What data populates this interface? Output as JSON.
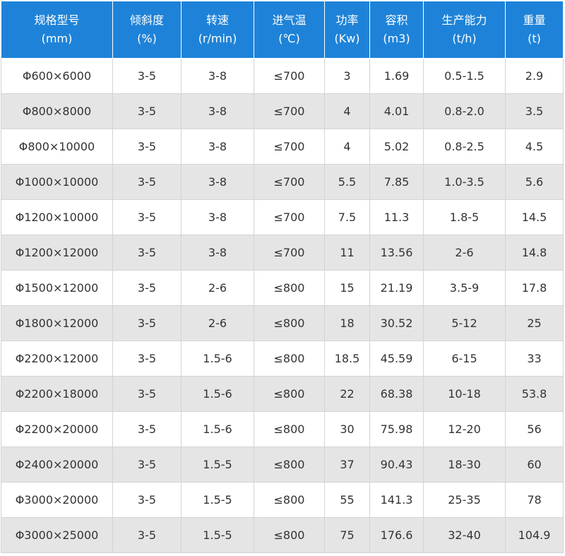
{
  "table": {
    "headers": [
      {
        "name": "规格型号",
        "unit": "(mm)"
      },
      {
        "name": "倾斜度",
        "unit": "(%)"
      },
      {
        "name": "转速",
        "unit": "(r/min)"
      },
      {
        "name": "进气温",
        "unit": "(℃)"
      },
      {
        "name": "功率",
        "unit": "(Kw)"
      },
      {
        "name": "容积",
        "unit": "(m3)"
      },
      {
        "name": "生产能力",
        "unit": "(t/h)"
      },
      {
        "name": "重量",
        "unit": "(t)"
      }
    ],
    "rows": [
      [
        "Φ600×6000",
        "3-5",
        "3-8",
        "≤700",
        "3",
        "1.69",
        "0.5-1.5",
        "2.9"
      ],
      [
        "Φ800×8000",
        "3-5",
        "3-8",
        "≤700",
        "4",
        "4.01",
        "0.8-2.0",
        "3.5"
      ],
      [
        "Φ800×10000",
        "3-5",
        "3-8",
        "≤700",
        "4",
        "5.02",
        "0.8-2.5",
        "4.5"
      ],
      [
        "Φ1000×10000",
        "3-5",
        "3-8",
        "≤700",
        "5.5",
        "7.85",
        "1.0-3.5",
        "5.6"
      ],
      [
        "Φ1200×10000",
        "3-5",
        "3-8",
        "≤700",
        "7.5",
        "11.3",
        "1.8-5",
        "14.5"
      ],
      [
        "Φ1200×12000",
        "3-5",
        "3-8",
        "≤700",
        "11",
        "13.56",
        "2-6",
        "14.8"
      ],
      [
        "Φ1500×12000",
        "3-5",
        "2-6",
        "≤800",
        "15",
        "21.19",
        "3.5-9",
        "17.8"
      ],
      [
        "Φ1800×12000",
        "3-5",
        "2-6",
        "≤800",
        "18",
        "30.52",
        "5-12",
        "25"
      ],
      [
        "Φ2200×12000",
        "3-5",
        "1.5-6",
        "≤800",
        "18.5",
        "45.59",
        "6-15",
        "33"
      ],
      [
        "Φ2200×18000",
        "3-5",
        "1.5-6",
        "≤800",
        "22",
        "68.38",
        "10-18",
        "53.8"
      ],
      [
        "Φ2200×20000",
        "3-5",
        "1.5-6",
        "≤800",
        "30",
        "75.98",
        "12-20",
        "56"
      ],
      [
        "Φ2400×20000",
        "3-5",
        "1.5-5",
        "≤800",
        "37",
        "90.43",
        "18-30",
        "60"
      ],
      [
        "Φ3000×20000",
        "3-5",
        "1.5-5",
        "≤800",
        "55",
        "141.3",
        "25-35",
        "78"
      ],
      [
        "Φ3000×25000",
        "3-5",
        "1.5-5",
        "≤800",
        "75",
        "176.6",
        "32-40",
        "104.9"
      ]
    ]
  }
}
